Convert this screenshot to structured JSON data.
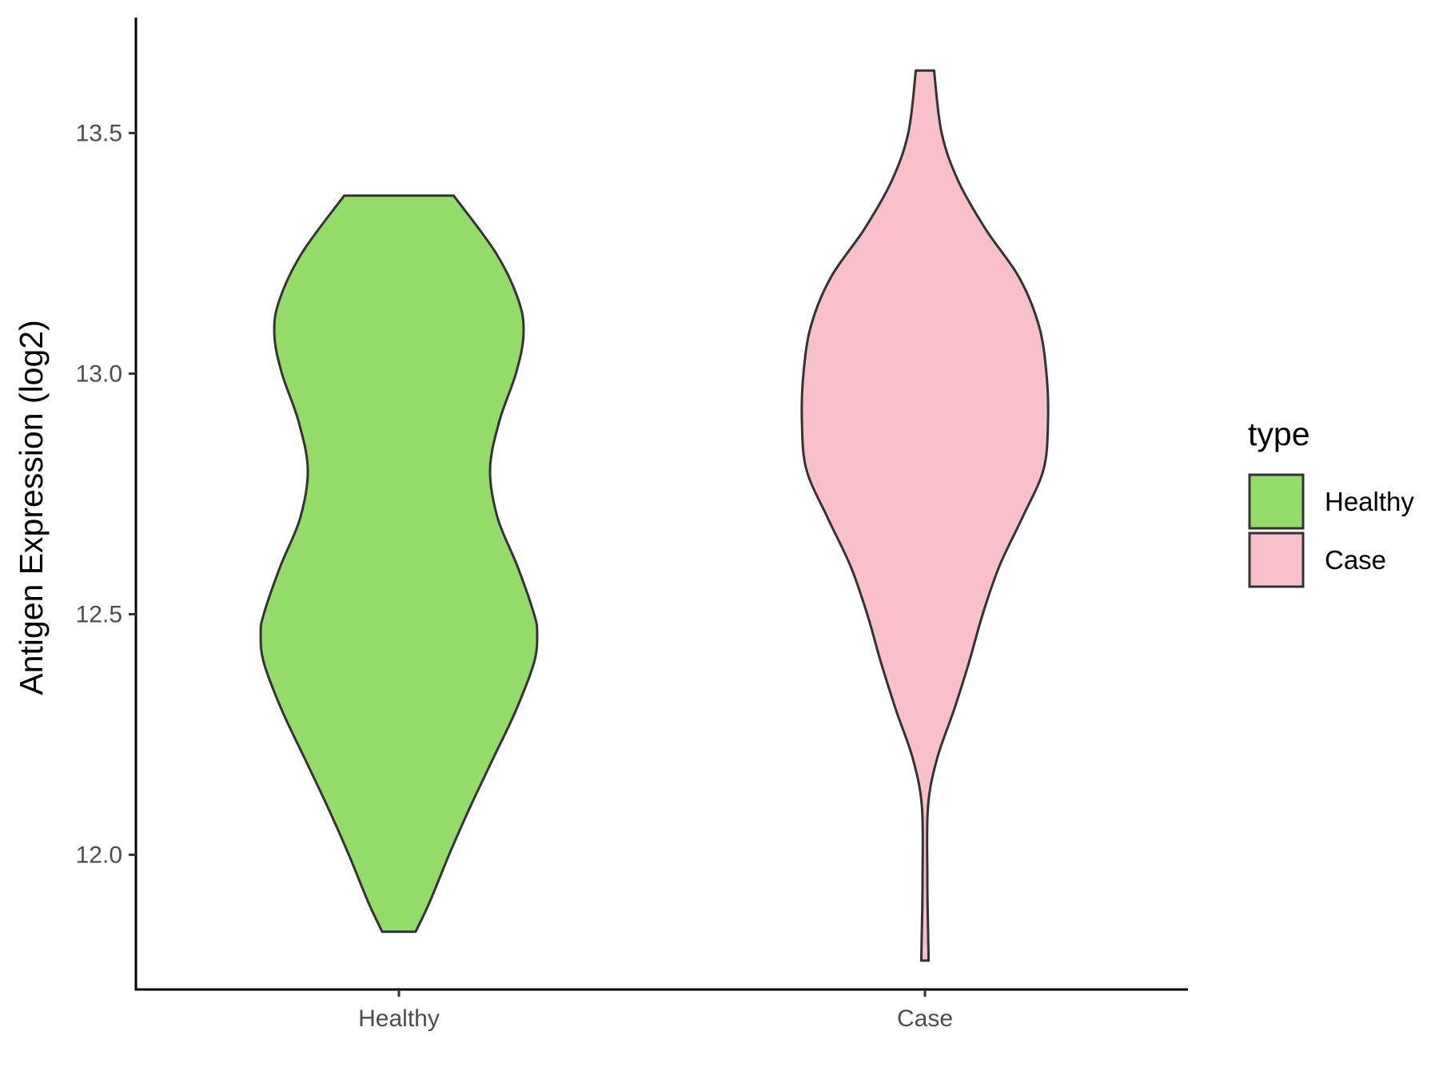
{
  "chart_data": {
    "type": "violin",
    "title": "",
    "xlabel": "",
    "ylabel": "Antigen Expression (log2)",
    "ylim": [
      11.72,
      13.74
    ],
    "y_ticks": [
      12.0,
      12.5,
      13.0,
      13.5
    ],
    "y_tick_labels": [
      "12.0",
      "12.5",
      "13.0",
      "13.5"
    ],
    "categories": [
      "Healthy",
      "Case"
    ],
    "grid": false,
    "legend": {
      "title": "type",
      "position": "right",
      "entries": [
        {
          "label": "Healthy",
          "color": "#93DC6A"
        },
        {
          "label": "Case",
          "color": "#F8C0CB"
        }
      ]
    },
    "series": [
      {
        "name": "Healthy",
        "color": "#93DC6A",
        "min": 11.84,
        "max": 13.37,
        "profile": [
          [
            11.84,
            0.055
          ],
          [
            11.9,
            0.1
          ],
          [
            12.0,
            0.165
          ],
          [
            12.1,
            0.235
          ],
          [
            12.2,
            0.31
          ],
          [
            12.3,
            0.385
          ],
          [
            12.4,
            0.445
          ],
          [
            12.46,
            0.455
          ],
          [
            12.5,
            0.445
          ],
          [
            12.6,
            0.39
          ],
          [
            12.7,
            0.325
          ],
          [
            12.8,
            0.3
          ],
          [
            12.9,
            0.33
          ],
          [
            13.0,
            0.385
          ],
          [
            13.08,
            0.41
          ],
          [
            13.15,
            0.395
          ],
          [
            13.25,
            0.32
          ],
          [
            13.37,
            0.18
          ]
        ]
      },
      {
        "name": "Case",
        "color": "#F8C0CB",
        "min": 11.78,
        "max": 13.63,
        "profile": [
          [
            11.78,
            0.012
          ],
          [
            11.85,
            0.01
          ],
          [
            11.95,
            0.008
          ],
          [
            12.1,
            0.01
          ],
          [
            12.2,
            0.04
          ],
          [
            12.3,
            0.095
          ],
          [
            12.4,
            0.145
          ],
          [
            12.5,
            0.19
          ],
          [
            12.6,
            0.245
          ],
          [
            12.7,
            0.32
          ],
          [
            12.8,
            0.39
          ],
          [
            12.9,
            0.405
          ],
          [
            13.0,
            0.4
          ],
          [
            13.1,
            0.375
          ],
          [
            13.2,
            0.31
          ],
          [
            13.3,
            0.2
          ],
          [
            13.4,
            0.11
          ],
          [
            13.5,
            0.055
          ],
          [
            13.63,
            0.03
          ]
        ]
      }
    ]
  }
}
